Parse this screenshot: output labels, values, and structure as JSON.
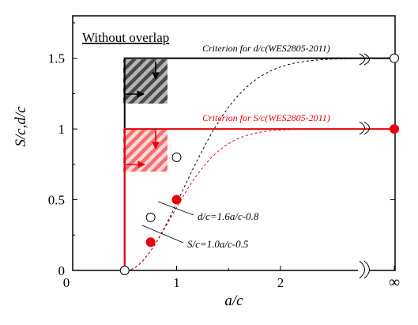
{
  "chart_data": {
    "type": "scatter",
    "title": "Without overlap",
    "xlabel": "a/c",
    "ylabel": "S/c,d/c",
    "xlim": [
      0,
      3
    ],
    "ylim": [
      0,
      1.8
    ],
    "x_ticks": [
      {
        "value": 0,
        "label": "0"
      },
      {
        "value": 1,
        "label": "1"
      },
      {
        "value": 2,
        "label": "2"
      },
      {
        "value": 3,
        "label": "∞"
      }
    ],
    "y_ticks": [
      {
        "value": 0,
        "label": "0"
      },
      {
        "value": 0.5,
        "label": "0.5"
      },
      {
        "value": 1,
        "label": "1"
      },
      {
        "value": 1.5,
        "label": "1.5"
      }
    ],
    "grid": false,
    "colors": {
      "dc": "#000000",
      "sc": "#e8000b"
    },
    "criteria": [
      {
        "label": "Criterion for d/c(WES2805-2011)",
        "color": "#000000",
        "a_min": 0.5,
        "level": 1.5
      },
      {
        "label": "Criterion for S/c(WES2805-2011)",
        "color": "#e8000b",
        "a_min": 0.5,
        "level": 1.0
      }
    ],
    "series": [
      {
        "marker": "open-circle",
        "color": "#000000",
        "points": [
          {
            "x": 0.5,
            "y": 0
          },
          {
            "x": 0.75,
            "y": 0.375
          },
          {
            "x": 1.0,
            "y": 0.8
          },
          {
            "x": 3,
            "y": 1.5
          }
        ]
      },
      {
        "marker": "filled-circle",
        "color": "#e8000b",
        "points": [
          {
            "x": 0.75,
            "y": 0.2
          },
          {
            "x": 1.0,
            "y": 0.5
          },
          {
            "x": 3,
            "y": 1.0
          }
        ]
      }
    ],
    "fit_lines": [
      {
        "label": "d/c=1.6a/c-0.8",
        "color": "#000000",
        "asymptote": 1.5
      },
      {
        "label": "S/c=1.0a/c-0.5",
        "color": "#e8000b",
        "asymptote": 1.0
      }
    ]
  }
}
